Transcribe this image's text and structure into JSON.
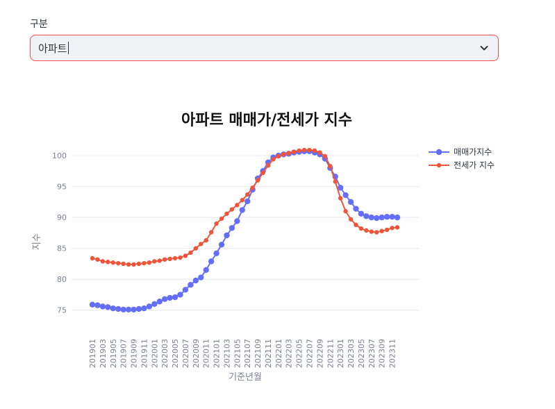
{
  "filter": {
    "label": "구분",
    "selected": "아파트"
  },
  "chart_data": {
    "type": "line",
    "title": "아파트 매매가/전세가 지수",
    "xlabel": "기준년월",
    "ylabel": "지수",
    "ylim": [
      72.5,
      102.7
    ],
    "yticks": [
      75,
      80,
      85,
      90,
      95,
      100
    ],
    "grid": true,
    "legend_position": "top-right",
    "x": [
      "201901",
      "201902",
      "201903",
      "201904",
      "201905",
      "201906",
      "201907",
      "201908",
      "201909",
      "201910",
      "201911",
      "201912",
      "202001",
      "202002",
      "202003",
      "202004",
      "202005",
      "202006",
      "202007",
      "202008",
      "202009",
      "202010",
      "202011",
      "202012",
      "202101",
      "202102",
      "202103",
      "202104",
      "202105",
      "202106",
      "202107",
      "202108",
      "202109",
      "202110",
      "202111",
      "202112",
      "202201",
      "202202",
      "202203",
      "202204",
      "202205",
      "202206",
      "202207",
      "202208",
      "202209",
      "202210",
      "202211",
      "202212",
      "202301",
      "202302",
      "202303",
      "202304",
      "202305",
      "202306",
      "202307",
      "202308",
      "202309",
      "202310",
      "202311",
      "202312"
    ],
    "xtick_labels": [
      "201901",
      "201903",
      "201905",
      "201907",
      "201909",
      "201911",
      "202001",
      "202003",
      "202005",
      "202007",
      "202009",
      "202011",
      "202101",
      "202103",
      "202105",
      "202107",
      "202109",
      "202111",
      "202201",
      "202203",
      "202205",
      "202207",
      "202209",
      "202211",
      "202301",
      "202303",
      "202305",
      "202307",
      "202309",
      "202311"
    ],
    "series": [
      {
        "name": "매매가지수",
        "color": "#636efa",
        "values": [
          75.9,
          75.8,
          75.6,
          75.5,
          75.3,
          75.2,
          75.1,
          75.1,
          75.1,
          75.2,
          75.3,
          75.6,
          76.0,
          76.4,
          76.8,
          77.0,
          77.1,
          77.5,
          78.3,
          79.1,
          79.8,
          80.3,
          81.5,
          82.9,
          84.2,
          85.6,
          87.1,
          88.3,
          89.4,
          91.2,
          92.6,
          94.5,
          96.3,
          97.5,
          98.9,
          99.7,
          100.0,
          100.2,
          100.3,
          100.5,
          100.6,
          100.7,
          100.7,
          100.5,
          100.2,
          99.5,
          98.0,
          96.6,
          94.8,
          93.6,
          92.5,
          91.4,
          90.6,
          90.2,
          90.0,
          89.9,
          90.0,
          90.1,
          90.1,
          90.0
        ]
      },
      {
        "name": "전세가 지수",
        "color": "#ef553b",
        "values": [
          83.4,
          83.2,
          82.9,
          82.8,
          82.7,
          82.6,
          82.5,
          82.4,
          82.4,
          82.5,
          82.6,
          82.7,
          82.9,
          83.0,
          83.2,
          83.3,
          83.4,
          83.5,
          83.8,
          84.3,
          85.0,
          85.7,
          86.3,
          87.6,
          89.0,
          89.8,
          90.6,
          91.3,
          92.0,
          92.8,
          93.7,
          94.8,
          96.0,
          97.2,
          98.4,
          99.4,
          99.9,
          100.2,
          100.4,
          100.6,
          100.8,
          100.9,
          100.9,
          100.8,
          100.5,
          99.9,
          98.3,
          95.8,
          93.1,
          91.0,
          89.7,
          88.8,
          88.2,
          87.9,
          87.7,
          87.6,
          87.8,
          88.0,
          88.3,
          88.4
        ]
      }
    ]
  }
}
